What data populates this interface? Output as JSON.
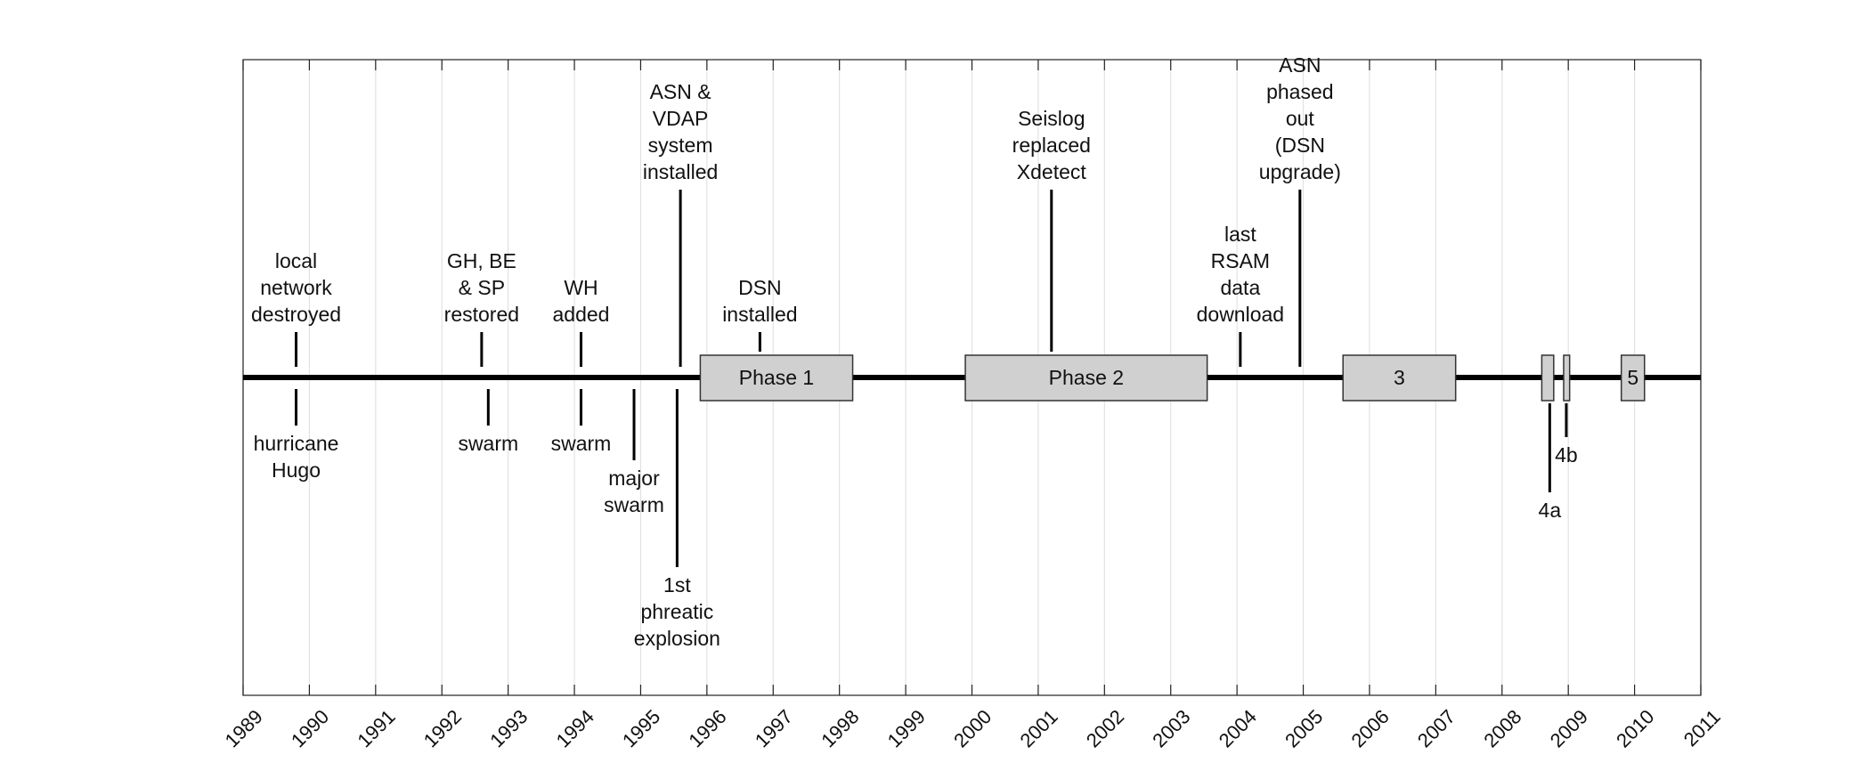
{
  "chart_data": {
    "type": "timeline",
    "xlim": [
      1989,
      2011
    ],
    "x_ticks": [
      "1989",
      "1990",
      "1991",
      "1992",
      "1993",
      "1994",
      "1995",
      "1996",
      "1997",
      "1998",
      "1999",
      "2000",
      "2001",
      "2002",
      "2003",
      "2004",
      "2005",
      "2006",
      "2007",
      "2008",
      "2009",
      "2010",
      "2011"
    ],
    "grid": true,
    "colors": {
      "axis": "#000000",
      "grid": "#e2e2e2",
      "box_fill": "#d0d0d0",
      "box_stroke": "#333333"
    },
    "periods": [
      {
        "label": "Phase 1",
        "start": 1995.9,
        "end": 1998.2
      },
      {
        "label": "Phase 2",
        "start": 1999.9,
        "end": 2003.55
      },
      {
        "label": "3",
        "start": 2005.6,
        "end": 2007.3
      },
      {
        "label": "",
        "start": 2008.6,
        "end": 2008.78
      },
      {
        "label": "",
        "start": 2008.93,
        "end": 2009.02
      },
      {
        "label": "5",
        "start": 2009.8,
        "end": 2010.15
      }
    ],
    "events_above": [
      {
        "date": 1989.8,
        "lines": [
          "local",
          "network",
          "destroyed"
        ],
        "height": "short"
      },
      {
        "date": 1992.6,
        "lines": [
          "GH, BE",
          "& SP",
          "restored"
        ],
        "height": "short"
      },
      {
        "date": 1994.1,
        "lines": [
          "WH",
          "added"
        ],
        "height": "short"
      },
      {
        "date": 1995.6,
        "lines": [
          "ASN &",
          "VDAP",
          "system",
          "installed"
        ],
        "height": "tall"
      },
      {
        "date": 1996.8,
        "lines": [
          "DSN",
          "installed"
        ],
        "height": "short"
      },
      {
        "date": 2001.2,
        "lines": [
          "Seislog",
          "replaced",
          "Xdetect"
        ],
        "height": "tall"
      },
      {
        "date": 2004.05,
        "lines": [
          "last",
          "RSAM",
          "data",
          "download"
        ],
        "height": "short"
      },
      {
        "date": 2004.95,
        "lines": [
          "ASN",
          "phased",
          "out",
          "(DSN",
          "upgrade)"
        ],
        "height": "tall"
      }
    ],
    "events_below": [
      {
        "date": 1989.8,
        "lines": [
          "hurricane",
          "Hugo"
        ],
        "depth": "short"
      },
      {
        "date": 1992.7,
        "lines": [
          "swarm"
        ],
        "depth": "short"
      },
      {
        "date": 1994.1,
        "lines": [
          "swarm"
        ],
        "depth": "short"
      },
      {
        "date": 1994.9,
        "lines": [
          "major",
          "swarm"
        ],
        "depth": "medium"
      },
      {
        "date": 1995.55,
        "lines": [
          "1st",
          "phreatic",
          "explosion"
        ],
        "depth": "long"
      },
      {
        "date": 2008.72,
        "lines": [
          "4a"
        ],
        "depth": "medium",
        "from_box": true
      },
      {
        "date": 2008.97,
        "lines": [
          "4b"
        ],
        "depth": "short",
        "from_box": true
      }
    ]
  }
}
